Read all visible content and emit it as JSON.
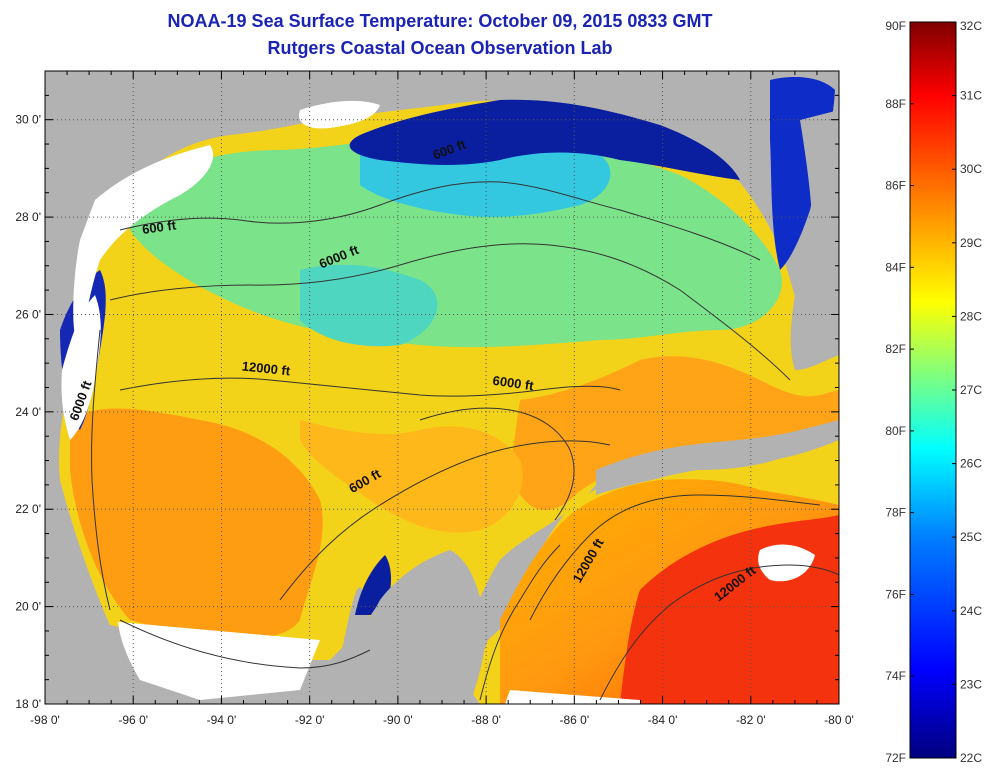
{
  "header": {
    "title": "NOAA-19 Sea Surface Temperature:  October 09, 2015 0833 GMT",
    "subtitle": "Rutgers Coastal Ocean Observation Lab"
  },
  "chart_data": {
    "type": "heatmap",
    "x_ticks": [
      "-98 0'",
      "-96 0'",
      "-94 0'",
      "-92 0'",
      "-90 0'",
      "-88 0'",
      "-86 0'",
      "-84 0'",
      "-82 0'",
      "-80 0'"
    ],
    "x_values": [
      -98,
      -96,
      -94,
      -92,
      -90,
      -88,
      -86,
      -84,
      -82,
      -80
    ],
    "y_ticks": [
      "18 0'",
      "20 0'",
      "22 0'",
      "24 0'",
      "26 0'",
      "28 0'",
      "30 0'"
    ],
    "y_values": [
      18,
      20,
      22,
      24,
      26,
      28,
      30
    ],
    "xlim": [
      -98,
      -80
    ],
    "ylim": [
      18,
      31
    ],
    "grid": "dotted",
    "contour_labels": [
      {
        "text": "600 ft",
        "lon": -95.4,
        "lat": 27.7,
        "angle": -8
      },
      {
        "text": "600 ft",
        "lon": -88.8,
        "lat": 29.3,
        "angle": -20
      },
      {
        "text": "6000 ft",
        "lon": -91.3,
        "lat": 27.1,
        "angle": -22
      },
      {
        "text": "12000 ft",
        "lon": -93.0,
        "lat": 24.8,
        "angle": 6
      },
      {
        "text": "6000 ft",
        "lon": -87.4,
        "lat": 24.5,
        "angle": 8
      },
      {
        "text": "6000 ft",
        "lon": -97.1,
        "lat": 24.2,
        "angle": -70
      },
      {
        "text": "600 ft",
        "lon": -90.7,
        "lat": 22.5,
        "angle": -30
      },
      {
        "text": "12000 ft",
        "lon": -85.6,
        "lat": 20.9,
        "angle": -60
      },
      {
        "text": "12000 ft",
        "lon": -82.3,
        "lat": 20.4,
        "angle": -38
      }
    ],
    "colorbar": {
      "celsius_range": [
        22,
        32
      ],
      "fahrenheit_range": [
        72,
        90
      ],
      "celsius_labels": [
        "32C",
        "31C",
        "30C",
        "29C",
        "28C",
        "27C",
        "26C",
        "25C",
        "24C",
        "23C",
        "22C"
      ],
      "fahrenheit_labels": [
        "90F",
        "88F",
        "86F",
        "84F",
        "82F",
        "80F",
        "78F",
        "76F",
        "74F",
        "72F"
      ],
      "colors": [
        "#00007f",
        "#0000ff",
        "#007fff",
        "#00ffff",
        "#7fff7f",
        "#ffff00",
        "#ff7f00",
        "#ff0000",
        "#7f0000"
      ]
    },
    "colors": {
      "land": "#b2b2b2",
      "cloud": "#ffffff",
      "contour": "#333333"
    }
  }
}
